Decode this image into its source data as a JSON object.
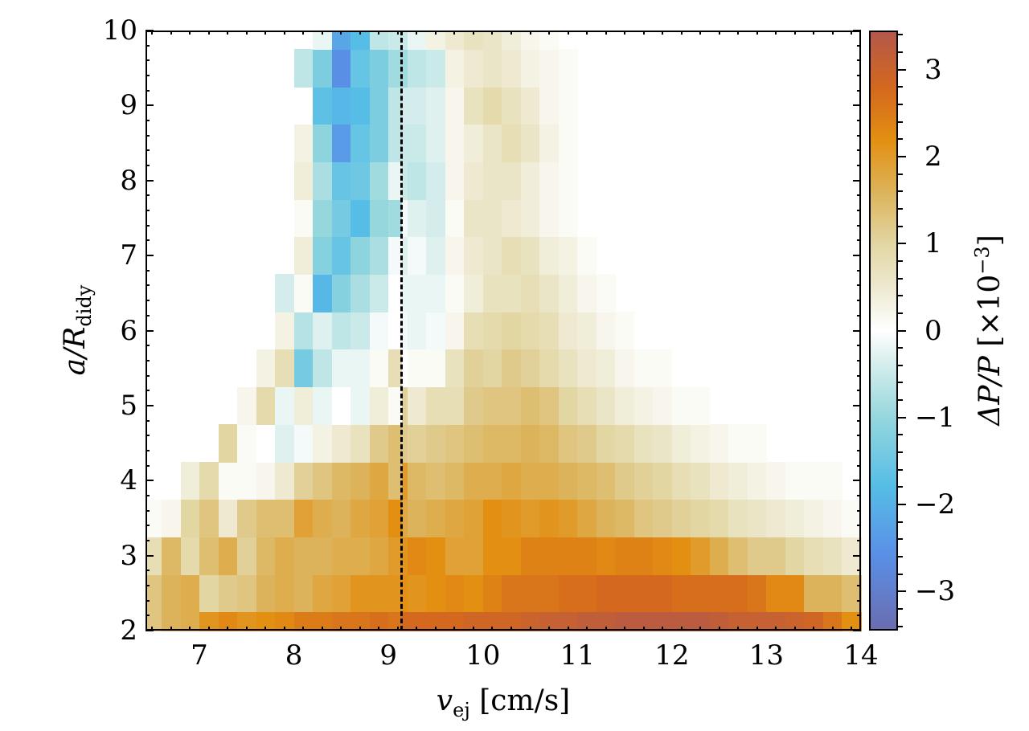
{
  "chart_data": {
    "type": "heatmap",
    "title": "",
    "xlabel": "v_ej [cm/s]",
    "ylabel": "a/R_didy",
    "xlim": [
      6.43,
      14.0
    ],
    "ylim": [
      2.0,
      10.0
    ],
    "x_ticks": [
      7,
      8,
      9,
      10,
      11,
      12,
      13,
      14
    ],
    "y_ticks": [
      2,
      3,
      4,
      5,
      6,
      7,
      8,
      9,
      10
    ],
    "grid": false,
    "vertical_line": {
      "x": 9.14,
      "style": "dashed",
      "color": "#000000"
    },
    "colorbar": {
      "label": "ΔP/P [×10^-3]",
      "range": [
        -3.45,
        3.45
      ],
      "ticks": [
        -3,
        -2,
        -1,
        0,
        1,
        2,
        3
      ],
      "tick_labels": [
        "−3",
        "−2",
        "−1",
        "0",
        "1",
        "2",
        "3"
      ],
      "colormap_stops": [
        {
          "v": -3.45,
          "color": "#6a6db0"
        },
        {
          "v": -2.6,
          "color": "#5a8fe6"
        },
        {
          "v": -1.8,
          "color": "#56bde6"
        },
        {
          "v": -1.0,
          "color": "#95d7dd"
        },
        {
          "v": -0.3,
          "color": "#dff1ef"
        },
        {
          "v": 0.0,
          "color": "#ffffff"
        },
        {
          "v": 0.4,
          "color": "#f0edd9"
        },
        {
          "v": 1.0,
          "color": "#e2d6a3"
        },
        {
          "v": 1.6,
          "color": "#dcb35a"
        },
        {
          "v": 2.2,
          "color": "#e38f12"
        },
        {
          "v": 2.8,
          "color": "#d4681e"
        },
        {
          "v": 3.45,
          "color": "#b4584a"
        }
      ]
    },
    "x_bin_edges": [
      6.43,
      6.6,
      6.8,
      7.0,
      7.2,
      7.4,
      7.6,
      7.8,
      8.0,
      8.2,
      8.4,
      8.6,
      8.8,
      9.0,
      9.14,
      9.2,
      9.4,
      9.6,
      9.8,
      10.0,
      10.2,
      10.4,
      10.6,
      10.8,
      11.0,
      11.2,
      11.4,
      11.6,
      11.8,
      12.0,
      12.2,
      12.4,
      12.6,
      12.8,
      13.0,
      13.2,
      13.4,
      13.6,
      13.8,
      14.0
    ],
    "y_bin_edges": [
      2.0,
      2.25,
      2.75,
      3.25,
      3.75,
      4.25,
      4.75,
      5.25,
      5.75,
      6.25,
      6.75,
      7.25,
      7.75,
      8.25,
      8.75,
      9.25,
      9.75,
      10.0
    ],
    "values_units": "ΔP/P ×10^-3 (null = no data / white)",
    "values": [
      [
        1.3,
        1.6,
        1.7,
        2.1,
        2.3,
        2.1,
        2.2,
        2.3,
        2.5,
        2.5,
        2.6,
        2.6,
        2.7,
        2.6,
        2.8,
        2.8,
        2.8,
        2.8,
        2.9,
        2.9,
        2.9,
        3.0,
        3.1,
        3.1,
        3.2,
        3.2,
        3.3,
        3.3,
        3.3,
        3.3,
        3.3,
        3.2,
        3.1,
        3.1,
        3.1,
        3.0,
        2.9,
        2.6,
        2.2
      ],
      [
        1.3,
        1.6,
        1.7,
        1.0,
        1.2,
        1.3,
        1.6,
        1.7,
        1.6,
        1.8,
        1.9,
        2.1,
        2.1,
        2.1,
        2.2,
        2.1,
        2.2,
        2.3,
        2.2,
        2.4,
        2.6,
        2.6,
        2.6,
        2.7,
        2.7,
        2.8,
        2.8,
        2.8,
        2.8,
        2.7,
        2.7,
        2.7,
        2.7,
        2.6,
        2.3,
        2.3,
        1.6,
        1.6,
        1.4
      ],
      [
        0.8,
        1.5,
        0.9,
        1.4,
        1.7,
        1.1,
        1.5,
        1.7,
        1.6,
        1.6,
        1.7,
        1.7,
        1.8,
        2.0,
        2.1,
        2.3,
        2.2,
        1.9,
        1.9,
        2.2,
        2.2,
        2.4,
        2.4,
        2.4,
        2.4,
        2.3,
        2.4,
        2.4,
        2.3,
        2.2,
        2.0,
        1.7,
        1.4,
        1.2,
        1.2,
        1.0,
        0.8,
        0.7,
        0.5
      ],
      [
        0.1,
        0.2,
        1.0,
        1.3,
        0.5,
        1.2,
        1.4,
        1.4,
        1.9,
        1.7,
        1.6,
        1.8,
        1.9,
        2.2,
        1.8,
        1.6,
        1.7,
        1.8,
        1.9,
        2.2,
        2.1,
        2.0,
        2.1,
        2.0,
        1.8,
        1.6,
        1.5,
        1.3,
        1.2,
        1.1,
        1.0,
        0.9,
        0.7,
        0.6,
        0.5,
        0.4,
        0.3,
        0.2,
        0.1
      ],
      [
        null,
        null,
        0.4,
        0.9,
        0.1,
        0.1,
        0.2,
        0.5,
        1.1,
        1.3,
        1.5,
        1.6,
        1.8,
        1.4,
        2.0,
        1.5,
        1.4,
        1.5,
        1.7,
        1.7,
        1.8,
        1.7,
        1.7,
        1.6,
        1.5,
        1.4,
        1.2,
        1.1,
        1.0,
        0.8,
        0.7,
        0.5,
        0.4,
        0.3,
        0.2,
        0.1,
        0.1,
        0.1,
        null
      ],
      [
        null,
        null,
        null,
        null,
        1.0,
        0.1,
        0.0,
        -0.3,
        -0.1,
        0.3,
        0.5,
        0.7,
        1.2,
        1.4,
        1.2,
        1.1,
        1.2,
        1.3,
        1.4,
        1.5,
        1.5,
        1.6,
        1.5,
        1.3,
        1.2,
        1.0,
        0.9,
        0.7,
        0.6,
        0.4,
        0.3,
        0.2,
        0.1,
        0.1,
        null,
        null,
        null,
        null,
        null
      ],
      [
        null,
        null,
        null,
        null,
        null,
        0.2,
        0.9,
        -0.2,
        0.4,
        -0.2,
        0.0,
        -0.2,
        0.4,
        0.1,
        1.1,
        0.5,
        0.8,
        0.8,
        1.2,
        1.3,
        1.3,
        1.4,
        1.3,
        1.0,
        0.8,
        0.6,
        0.4,
        0.3,
        0.2,
        0.1,
        0.1,
        null,
        null,
        null,
        null,
        null,
        null,
        null,
        null
      ],
      [
        null,
        null,
        null,
        null,
        null,
        null,
        0.3,
        0.8,
        -1.4,
        -0.6,
        -0.2,
        -0.2,
        0.1,
        0.8,
        0.0,
        0.1,
        0.1,
        0.7,
        1.1,
        1.0,
        1.2,
        1.1,
        0.9,
        0.7,
        0.5,
        0.4,
        0.2,
        0.1,
        0.1,
        null,
        null,
        null,
        null,
        null,
        null,
        null,
        null,
        null,
        null
      ],
      [
        null,
        null,
        null,
        null,
        null,
        null,
        null,
        0.3,
        -0.7,
        -0.3,
        -0.6,
        -0.5,
        -0.1,
        0.0,
        -0.1,
        -0.2,
        -0.1,
        0.2,
        0.8,
        0.9,
        1.0,
        0.9,
        0.8,
        0.5,
        0.4,
        0.2,
        0.1,
        null,
        null,
        null,
        null,
        null,
        null,
        null,
        null,
        null,
        null,
        null,
        null
      ],
      [
        null,
        null,
        null,
        null,
        null,
        null,
        null,
        -0.4,
        0.1,
        -1.9,
        -1.2,
        -0.8,
        -0.5,
        0.0,
        -0.2,
        -0.2,
        -0.2,
        0.1,
        0.4,
        0.7,
        0.7,
        0.8,
        0.6,
        0.4,
        0.2,
        0.1,
        null,
        null,
        null,
        null,
        null,
        null,
        null,
        null,
        null,
        null,
        null,
        null,
        null
      ],
      [
        null,
        null,
        null,
        null,
        null,
        null,
        null,
        null,
        0.4,
        -1.2,
        -1.6,
        -1.1,
        -0.8,
        -0.1,
        -0.3,
        -0.1,
        -0.3,
        0.2,
        0.5,
        0.6,
        0.8,
        0.7,
        0.4,
        0.3,
        0.1,
        null,
        null,
        null,
        null,
        null,
        null,
        null,
        null,
        null,
        null,
        null,
        null,
        null,
        null
      ],
      [
        null,
        null,
        null,
        null,
        null,
        null,
        null,
        null,
        0.1,
        -1.0,
        -1.4,
        -1.8,
        -1.0,
        -0.9,
        -0.1,
        -0.3,
        -0.4,
        0.1,
        0.6,
        0.6,
        0.5,
        0.4,
        0.2,
        0.1,
        null,
        null,
        null,
        null,
        null,
        null,
        null,
        null,
        null,
        null,
        null,
        null,
        null,
        null,
        null
      ],
      [
        null,
        null,
        null,
        null,
        null,
        null,
        null,
        null,
        0.4,
        -0.8,
        -1.6,
        -1.5,
        -0.9,
        -0.2,
        -0.5,
        -0.6,
        -0.4,
        0.2,
        0.5,
        0.6,
        0.6,
        0.4,
        0.2,
        0.1,
        null,
        null,
        null,
        null,
        null,
        null,
        null,
        null,
        null,
        null,
        null,
        null,
        null,
        null,
        null
      ],
      [
        null,
        null,
        null,
        null,
        null,
        null,
        null,
        null,
        0.3,
        -1.1,
        -2.4,
        -1.6,
        -1.3,
        -0.6,
        -0.5,
        -0.5,
        -0.3,
        0.2,
        0.4,
        0.6,
        0.8,
        0.6,
        0.3,
        0.1,
        null,
        null,
        null,
        null,
        null,
        null,
        null,
        null,
        null,
        null,
        null,
        null,
        null,
        null,
        null
      ],
      [
        null,
        null,
        null,
        null,
        null,
        null,
        null,
        null,
        0.0,
        -1.7,
        -1.9,
        -1.8,
        -1.3,
        -0.6,
        -0.4,
        -0.4,
        -0.3,
        0.2,
        0.7,
        0.9,
        0.7,
        0.5,
        0.2,
        0.1,
        null,
        null,
        null,
        null,
        null,
        null,
        null,
        null,
        null,
        null,
        null,
        null,
        null,
        null,
        null
      ],
      [
        null,
        null,
        null,
        null,
        null,
        null,
        null,
        null,
        -0.6,
        -1.3,
        -2.6,
        -1.6,
        -1.3,
        -0.9,
        -0.9,
        -0.6,
        -0.5,
        0.3,
        0.5,
        0.6,
        0.5,
        0.3,
        0.2,
        0.1,
        null,
        null,
        null,
        null,
        null,
        null,
        null,
        null,
        null,
        null,
        null,
        null,
        null,
        null,
        null
      ],
      [
        null,
        null,
        null,
        null,
        null,
        null,
        null,
        null,
        null,
        -0.2,
        -2.2,
        -1.8,
        -0.6,
        -0.5,
        -0.5,
        -0.2,
        0.3,
        0.5,
        0.7,
        0.6,
        0.4,
        0.2,
        0.1,
        null,
        null,
        null,
        null,
        null,
        null,
        null,
        null,
        null,
        null,
        null,
        null,
        null,
        null,
        null,
        null
      ]
    ]
  },
  "axes": {
    "x_tick_labels": [
      "7",
      "8",
      "9",
      "10",
      "11",
      "12",
      "13",
      "14"
    ],
    "y_tick_labels": [
      "2",
      "3",
      "4",
      "5",
      "6",
      "7",
      "8",
      "9",
      "10"
    ],
    "xlabel": {
      "var": "v",
      "sub": "ej",
      "unit": "[cm/s]"
    },
    "ylabel": {
      "num": "a/R",
      "sub": "didy"
    },
    "cblabel": {
      "var": "ΔP/P",
      "unit_pre": "[×10",
      "exp": "−3",
      "unit_post": "]"
    }
  }
}
